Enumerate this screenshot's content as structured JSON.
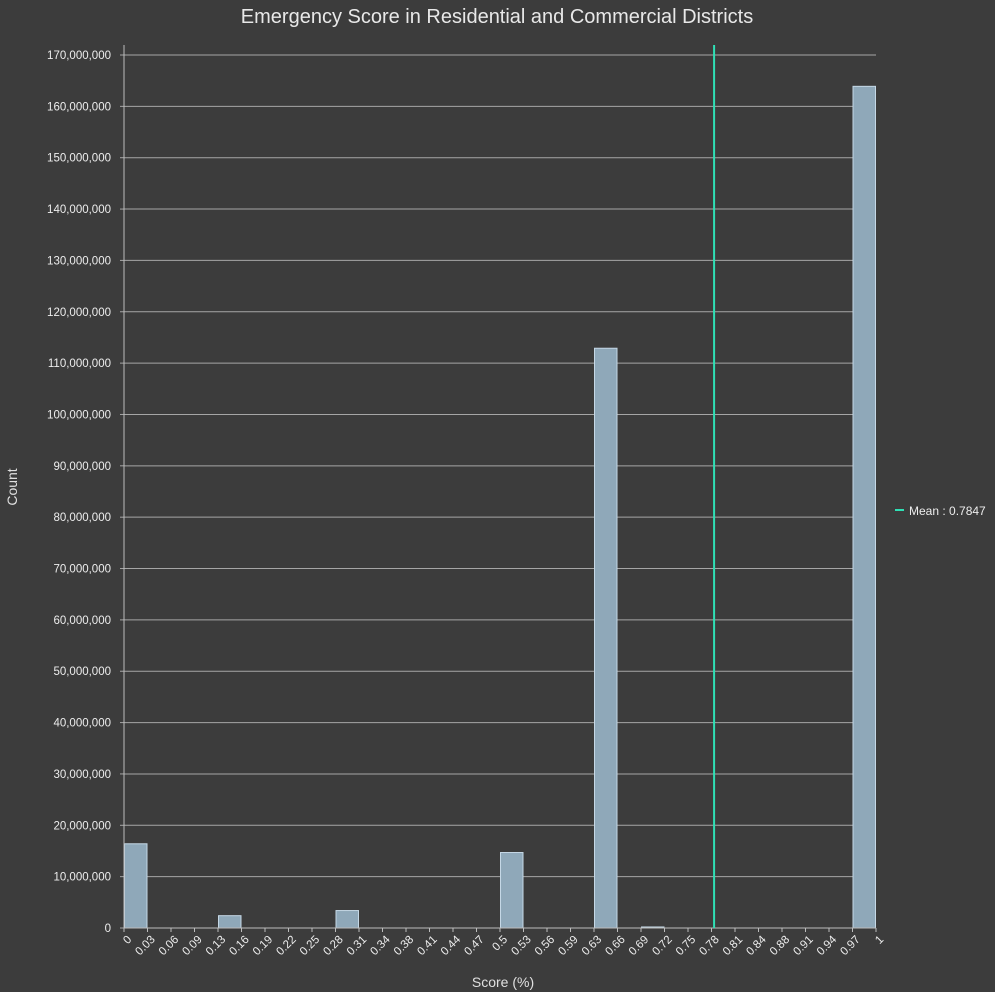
{
  "chart_data": {
    "type": "bar",
    "title": "Emergency Score in Residential and Commercial Districts",
    "xlabel": "Score (%)",
    "ylabel": "Count",
    "ylim": [
      0,
      170000000
    ],
    "y_ticks": [
      "0",
      "10,000,000",
      "20,000,000",
      "30,000,000",
      "40,000,000",
      "50,000,000",
      "60,000,000",
      "70,000,000",
      "80,000,000",
      "90,000,000",
      "100,000,000",
      "110,000,000",
      "120,000,000",
      "130,000,000",
      "140,000,000",
      "150,000,000",
      "160,000,000",
      "170,000,000"
    ],
    "x_ticks": [
      "0",
      "0.03",
      "0.06",
      "0.09",
      "0.13",
      "0.16",
      "0.19",
      "0.22",
      "0.25",
      "0.28",
      "0.31",
      "0.34",
      "0.38",
      "0.41",
      "0.44",
      "0.47",
      "0.5",
      "0.53",
      "0.56",
      "0.59",
      "0.63",
      "0.66",
      "0.69",
      "0.72",
      "0.75",
      "0.78",
      "0.81",
      "0.84",
      "0.88",
      "0.91",
      "0.94",
      "0.97",
      "1"
    ],
    "bins": 32,
    "values": [
      16400000,
      0,
      0,
      0,
      2400000,
      0,
      0,
      0,
      0,
      3400000,
      0,
      0,
      0,
      0,
      0,
      0,
      14700000,
      0,
      0,
      0,
      112900000,
      0,
      200000,
      0,
      0,
      0,
      0,
      0,
      0,
      0,
      0,
      163900000
    ],
    "mean": 0.7847,
    "mean_label": "Mean : 0.7847",
    "grid": true,
    "legend_position": "right",
    "colors": {
      "bar_fill": "#8fa8b9",
      "bar_stroke": "#c5d8e6",
      "mean_line": "#2fe0b5",
      "grid": "#a6a6a6",
      "background": "#3c3c3c"
    }
  }
}
